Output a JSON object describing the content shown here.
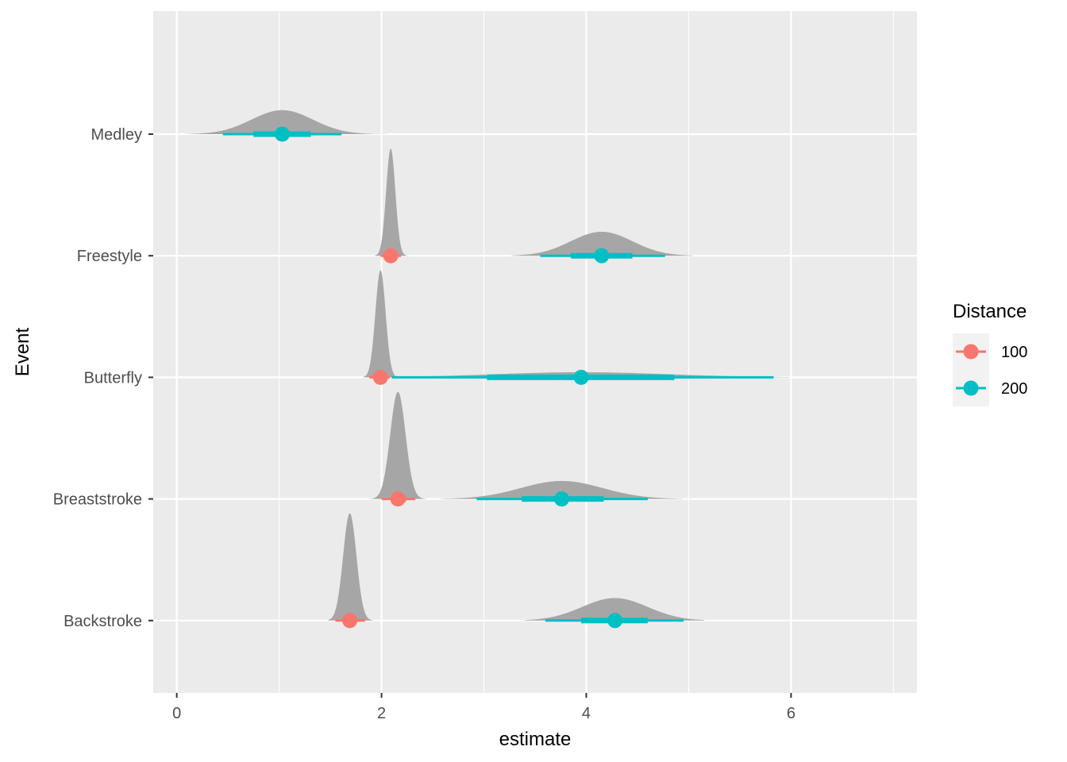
{
  "chart_data": {
    "type": "scatter",
    "subtype": "halfeye-density-interval",
    "xlabel": "estimate",
    "ylabel": "Event",
    "xlim": [
      -0.23,
      7.23
    ],
    "x_ticks": [
      0,
      2,
      4,
      6
    ],
    "x_minor_ticks": [
      1,
      3,
      5,
      7
    ],
    "categories": [
      "Medley",
      "Freestyle",
      "Butterfly",
      "Breaststroke",
      "Backstroke"
    ],
    "grid": true,
    "background": "#ebebeb",
    "density_color": "#a6a6a6",
    "legend": {
      "title": "Distance",
      "position": "right",
      "entries": [
        {
          "label": "100",
          "color": "#f8766d"
        },
        {
          "label": "200",
          "color": "#00bfc4"
        }
      ]
    },
    "series": [
      {
        "name": "100",
        "color": "#f8766d",
        "points": [
          {
            "category": "Freestyle",
            "median": 2.09,
            "ci66": [
              2.04,
              2.13
            ],
            "ci95": [
              1.99,
              2.19
            ],
            "density_range": [
              1.93,
              2.27
            ],
            "sd": 0.045
          },
          {
            "category": "Butterfly",
            "median": 1.99,
            "ci66": [
              1.94,
              2.04
            ],
            "ci95": [
              1.88,
              2.08
            ],
            "density_range": [
              1.82,
              2.13
            ],
            "sd": 0.05
          },
          {
            "category": "Breaststroke",
            "median": 2.16,
            "ci66": [
              2.09,
              2.24
            ],
            "ci95": [
              2.0,
              2.33
            ],
            "density_range": [
              1.87,
              2.43
            ],
            "sd": 0.075
          },
          {
            "category": "Backstroke",
            "median": 1.69,
            "ci66": [
              1.63,
              1.76
            ],
            "ci95": [
              1.55,
              1.84
            ],
            "density_range": [
              1.48,
              1.93
            ],
            "sd": 0.065
          }
        ]
      },
      {
        "name": "200",
        "color": "#00bfc4",
        "points": [
          {
            "category": "Medley",
            "median": 1.03,
            "ci66": [
              0.75,
              1.31
            ],
            "ci95": [
              0.45,
              1.61
            ],
            "density_range": [
              0.1,
              2.07
            ],
            "sd": 0.3
          },
          {
            "category": "Freestyle",
            "median": 4.15,
            "ci66": [
              3.85,
              4.45
            ],
            "ci95": [
              3.55,
              4.77
            ],
            "density_range": [
              3.27,
              5.04
            ],
            "sd": 0.3
          },
          {
            "category": "Butterfly",
            "median": 3.95,
            "ci66": [
              3.03,
              4.86
            ],
            "ci95": [
              2.1,
              5.83
            ],
            "density_range": [
              1.88,
              5.98
            ],
            "sd": 0.85
          },
          {
            "category": "Breaststroke",
            "median": 3.76,
            "ci66": [
              3.37,
              4.17
            ],
            "ci95": [
              2.93,
              4.6
            ],
            "density_range": [
              2.58,
              4.94
            ],
            "sd": 0.4
          },
          {
            "category": "Backstroke",
            "median": 4.28,
            "ci66": [
              3.95,
              4.6
            ],
            "ci95": [
              3.6,
              4.95
            ],
            "density_range": [
              3.4,
              5.15
            ],
            "sd": 0.32
          }
        ]
      }
    ]
  }
}
